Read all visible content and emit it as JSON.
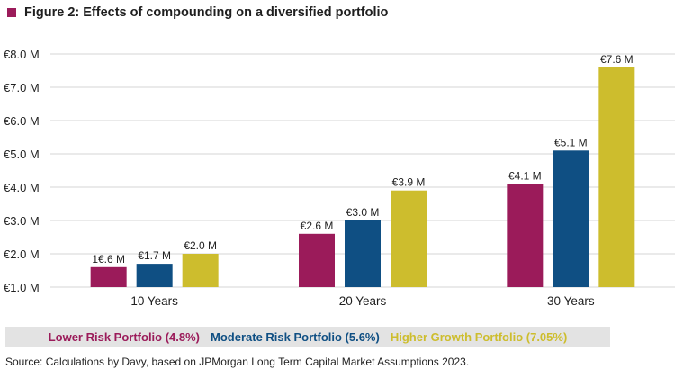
{
  "title": "Figure 2: Effects of compounding on a diversified portfolio",
  "colors": {
    "accent": "#9b1b5a",
    "lower": "#9b1b5a",
    "moderate": "#0f4f83",
    "higher": "#cdbd2d",
    "grid": "#d6d6d6"
  },
  "source": "Source: Calculations by Davy, based on JPMorgan Long Term Capital Market Assumptions 2023.",
  "chart_data": {
    "type": "bar",
    "categories": [
      "10 Years",
      "20 Years",
      "30 Years"
    ],
    "ylim": [
      1.0,
      8.0
    ],
    "yticks": [
      1.0,
      2.0,
      3.0,
      4.0,
      5.0,
      6.0,
      7.0,
      8.0
    ],
    "ytick_labels": [
      "€1.0 M",
      "€2.0 M",
      "€3.0 M",
      "€4.0 M",
      "€5.0 M",
      "€6.0 M",
      "€7.0 M",
      "€8.0 M"
    ],
    "grid": true,
    "legend_position": "bottom",
    "series": [
      {
        "name": "Lower Risk Portfolio (4.8%)",
        "color": "#9b1b5a",
        "values": [
          1.6,
          2.6,
          4.1
        ],
        "labels": [
          "1€.6 M",
          "€2.6 M",
          "€4.1 M"
        ]
      },
      {
        "name": "Moderate Risk Portfolio (5.6%)",
        "color": "#0f4f83",
        "values": [
          1.7,
          3.0,
          5.1
        ],
        "labels": [
          "€1.7 M",
          "€3.0 M",
          "€5.1 M"
        ]
      },
      {
        "name": "Higher Growth Portfolio (7.05%)",
        "color": "#cdbd2d",
        "values": [
          2.0,
          3.9,
          7.6
        ],
        "labels": [
          "€2.0 M",
          "€3.9 M",
          "€7.6 M"
        ]
      }
    ]
  }
}
